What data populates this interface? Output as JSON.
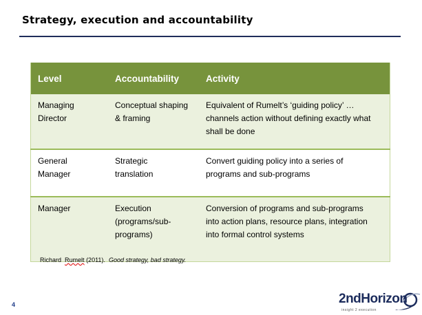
{
  "slide": {
    "title": "Strategy, execution and accountability",
    "page_number": "4"
  },
  "table": {
    "headers": [
      "Level",
      "Accountability",
      "Activity"
    ],
    "rows": [
      {
        "level": [
          "Managing",
          "Director"
        ],
        "accountability": [
          "Conceptual shaping",
          "& framing"
        ],
        "activity": [
          "Equivalent of Rumelt’s ‘guiding policy’ …",
          "channels action without defining exactly what",
          "shall be done"
        ]
      },
      {
        "level": [
          "General",
          "Manager"
        ],
        "accountability": [
          "Strategic",
          "translation"
        ],
        "activity": [
          "Convert guiding policy into a series of",
          "programs and sub-programs"
        ]
      },
      {
        "level": [
          "Manager"
        ],
        "accountability": [
          "Execution",
          "(programs/sub-",
          "programs)"
        ],
        "activity": [
          "Conversion of programs and sub-programs",
          "into action plans, resource plans, integration",
          "into formal control systems"
        ]
      }
    ]
  },
  "citation": {
    "author_first": "Richard",
    "author_last": "Rumelt",
    "year": "(2011).",
    "work": "Good strategy, bad strategy."
  },
  "logo": {
    "text": "2ndHorizon",
    "tagline": "insight 2 execution"
  },
  "colors": {
    "header_green": "#77933c",
    "row_shade": "#ebf1de",
    "title_rule": "#1f2d5a",
    "logo_navy": "#1c2c5c"
  }
}
